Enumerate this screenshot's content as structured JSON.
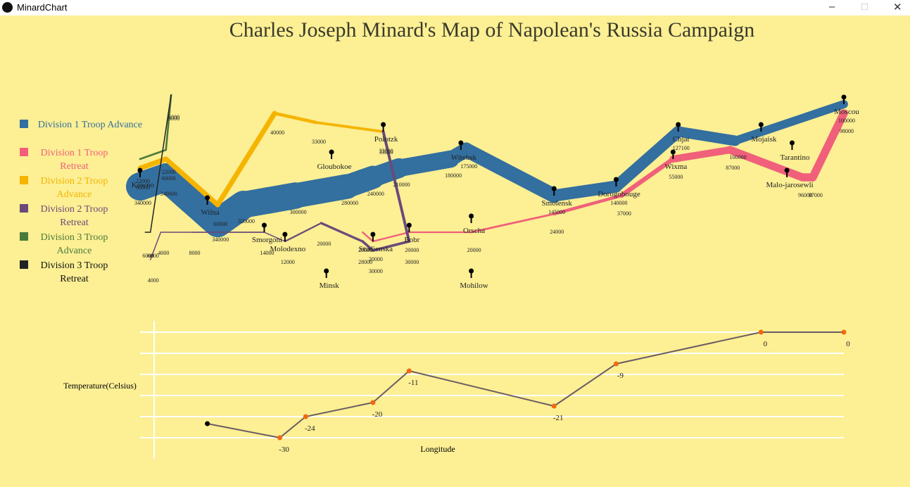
{
  "window": {
    "title": "MinardChart"
  },
  "chart_data": [
    {
      "type": "flow",
      "title": "Charles Joseph Minard's Map of Napolean's Russia Campaign",
      "xlim": [
        24,
        37.6
      ],
      "ylim": [
        53.9,
        55.8
      ],
      "cities": [
        {
          "name": "Kowno",
          "lon": 24.0,
          "lat": 55.0
        },
        {
          "name": "Wilna",
          "lon": 25.3,
          "lat": 54.7
        },
        {
          "name": "Smorgoni",
          "lon": 26.4,
          "lat": 54.4
        },
        {
          "name": "Molodexno",
          "lon": 26.8,
          "lat": 54.3
        },
        {
          "name": "Gloubokoe",
          "lon": 27.7,
          "lat": 55.2
        },
        {
          "name": "Minsk",
          "lon": 27.6,
          "lat": 53.9
        },
        {
          "name": "Studienska",
          "lon": 28.5,
          "lat": 54.3
        },
        {
          "name": "Polotzk",
          "lon": 28.7,
          "lat": 55.5
        },
        {
          "name": "Bobr",
          "lon": 29.2,
          "lat": 54.4
        },
        {
          "name": "Witebsk",
          "lon": 30.2,
          "lat": 55.3
        },
        {
          "name": "Orscha",
          "lon": 30.4,
          "lat": 54.5
        },
        {
          "name": "Mohilow",
          "lon": 30.4,
          "lat": 53.9
        },
        {
          "name": "Smolensk",
          "lon": 32.0,
          "lat": 54.8
        },
        {
          "name": "Dorogobouge",
          "lon": 33.2,
          "lat": 54.9
        },
        {
          "name": "Wixma",
          "lon": 34.3,
          "lat": 55.2
        },
        {
          "name": "Chjat",
          "lon": 34.4,
          "lat": 55.5
        },
        {
          "name": "Mojaisk",
          "lon": 36.0,
          "lat": 55.5
        },
        {
          "name": "Tarantino",
          "lon": 36.6,
          "lat": 55.3
        },
        {
          "name": "Malo-jarosewli",
          "lon": 36.5,
          "lat": 55.0
        },
        {
          "name": "Moscou",
          "lon": 37.6,
          "lat": 55.8
        }
      ],
      "series": [
        {
          "name": "Division 1 Troop Advance",
          "color": "#336f9f",
          "lon": [
            24.0,
            24.5,
            25.5,
            26.0,
            27.0,
            28.0,
            28.5,
            29.0,
            30.0,
            30.3,
            32.0,
            33.2,
            34.4,
            35.5,
            37.6
          ],
          "lat": [
            54.9,
            55.0,
            54.5,
            54.7,
            54.8,
            54.9,
            55.0,
            55.1,
            55.2,
            55.3,
            54.8,
            54.9,
            55.5,
            55.4,
            55.8
          ],
          "values": [
            340000,
            340000,
            340000,
            320000,
            300000,
            280000,
            240000,
            210000,
            180000,
            175000,
            145000,
            140000,
            127100,
            100000,
            100000
          ]
        },
        {
          "name": "Division 1 Troop Retreat",
          "color": "#f0607a",
          "lon": [
            37.6,
            37.0,
            36.8,
            35.4,
            34.3,
            33.3,
            32.0,
            30.4,
            29.2,
            28.5,
            28.3
          ],
          "lat": [
            55.7,
            55.0,
            55.0,
            55.3,
            55.2,
            54.8,
            54.6,
            54.4,
            54.4,
            54.3,
            54.4
          ],
          "values": [
            98000,
            97000,
            96000,
            87000,
            55000,
            37000,
            24000,
            20000,
            20000,
            20000,
            20000
          ]
        },
        {
          "name": "Division 2 Troop Advance",
          "color": "#f5b400",
          "lon": [
            24.0,
            24.5,
            25.5,
            26.6,
            27.4,
            28.7
          ],
          "lat": [
            55.1,
            55.2,
            54.7,
            55.7,
            55.6,
            55.5
          ],
          "values": [
            60000,
            60000,
            60000,
            40000,
            33000,
            33000
          ]
        },
        {
          "name": "Division 2 Troop Retreat",
          "color": "#6a4a7a",
          "lon": [
            28.7,
            29.2,
            28.5,
            28.3,
            27.5,
            26.8,
            26.4,
            25.0,
            24.4,
            24.2
          ],
          "lat": [
            55.5,
            54.3,
            54.2,
            54.3,
            54.5,
            54.3,
            54.4,
            54.4,
            54.4,
            54.1
          ],
          "values": [
            33000,
            30000,
            30000,
            28000,
            20000,
            12000,
            14000,
            8000,
            4000,
            4000
          ]
        },
        {
          "name": "Division 3 Troop Advance",
          "color": "#4a7a3a",
          "lon": [
            24.0,
            24.5,
            24.6
          ],
          "lat": [
            55.2,
            55.3,
            55.9
          ],
          "values": [
            22000,
            22000,
            6000
          ]
        },
        {
          "name": "Division 3 Troop Retreat",
          "color": "#222222",
          "lon": [
            24.6,
            24.2,
            24.1
          ],
          "lat": [
            55.9,
            54.4,
            54.4
          ],
          "values": [
            6000,
            6000,
            6000
          ]
        }
      ]
    },
    {
      "type": "line",
      "y_label": "Temperature(Celsius)",
      "x_label": "Longitude",
      "xlim": [
        24,
        37.6
      ],
      "ylim": [
        -30,
        0
      ],
      "grid_values": [
        0,
        -6,
        -12,
        -18,
        -24,
        -30
      ],
      "color": "#6b5c63",
      "point_color": "#f06a10",
      "x": [
        25.3,
        26.7,
        27.2,
        28.5,
        29.2,
        32.0,
        33.2,
        36.0,
        37.6
      ],
      "values": [
        -26,
        -30,
        -24,
        -20,
        -11,
        -21,
        -9,
        0,
        0
      ],
      "value_labels": [
        null,
        "-30",
        "-24",
        "-20",
        "-11",
        "-21",
        "-9",
        "0",
        "0"
      ]
    }
  ]
}
